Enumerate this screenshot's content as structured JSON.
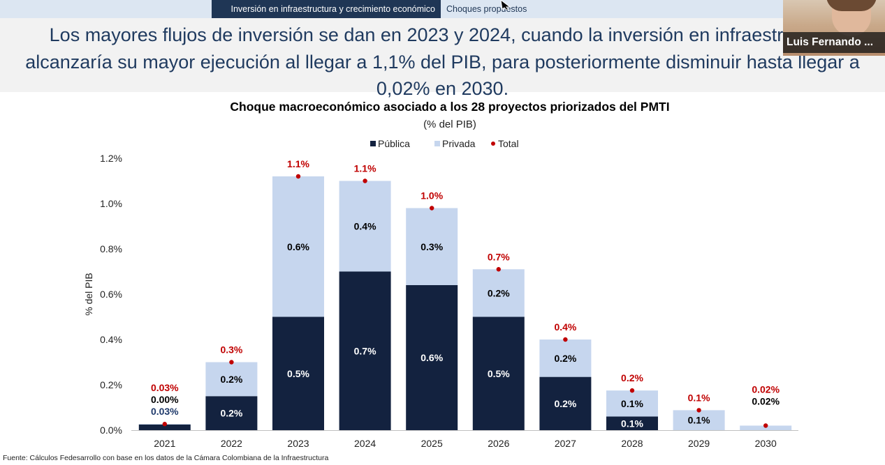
{
  "header": {
    "tabs": [
      {
        "label": "Inversión en infraestructura y crecimiento económico",
        "active": true
      },
      {
        "label": "Choques propuestos",
        "active": false
      }
    ],
    "headline_lines": [
      "Los mayores flujos de inversión se dan en 2023 y 2024, cuando la inversión en infraestructura",
      "alcanzaría su mayor ejecución al llegar a 1,1% del PIB, para posteriormente disminuir hasta llegar a",
      "0,02% en 2030."
    ]
  },
  "webcam": {
    "participant_name": "Luis Fernando ..."
  },
  "colors": {
    "publica": "#13223f",
    "privada": "#c6d6ee",
    "total": "#c00000",
    "headline": "#1f3a5f"
  },
  "chart_data": {
    "type": "bar",
    "stacked": true,
    "title": "Choque macroeconómico asociado a los 28 proyectos priorizados del PMTI",
    "subtitle": "(% del PIB)",
    "ylabel": "% del PIB",
    "xlabel": "",
    "ylim": [
      0,
      1.2
    ],
    "yticks": [
      "0.0%",
      "0.2%",
      "0.4%",
      "0.6%",
      "0.8%",
      "1.0%",
      "1.2%"
    ],
    "legend_position": "top-center",
    "categories": [
      "2021",
      "2022",
      "2023",
      "2024",
      "2025",
      "2026",
      "2027",
      "2028",
      "2029",
      "2030"
    ],
    "series": [
      {
        "name": "Pública",
        "values": [
          0.025,
          0.15,
          0.5,
          0.7,
          0.64,
          0.5,
          0.235,
          0.06,
          0,
          0
        ],
        "labels": [
          "0.03%",
          "0.2%",
          "0.5%",
          "0.7%",
          "0.6%",
          "0.5%",
          "0.2%",
          "0.1%",
          "",
          ""
        ]
      },
      {
        "name": "Privada",
        "values": [
          0.002,
          0.15,
          0.62,
          0.4,
          0.34,
          0.21,
          0.165,
          0.115,
          0.088,
          0.02
        ],
        "labels": [
          "0.00%",
          "0.2%",
          "0.6%",
          "0.4%",
          "0.3%",
          "0.2%",
          "0.2%",
          "0.1%",
          "0.1%",
          "0.02%"
        ]
      }
    ],
    "total": {
      "name": "Total",
      "values": [
        0.027,
        0.3,
        1.12,
        1.1,
        0.98,
        0.71,
        0.4,
        0.175,
        0.088,
        0.02
      ],
      "labels": [
        "0.03%",
        "0.3%",
        "1.1%",
        "1.1%",
        "1.0%",
        "0.7%",
        "0.4%",
        "0.2%",
        "0.1%",
        "0.02%"
      ]
    }
  },
  "source": "Fuente: Cálculos Fedesarrollo con base en los datos de la Cámara Colombiana de la Infraestructura"
}
